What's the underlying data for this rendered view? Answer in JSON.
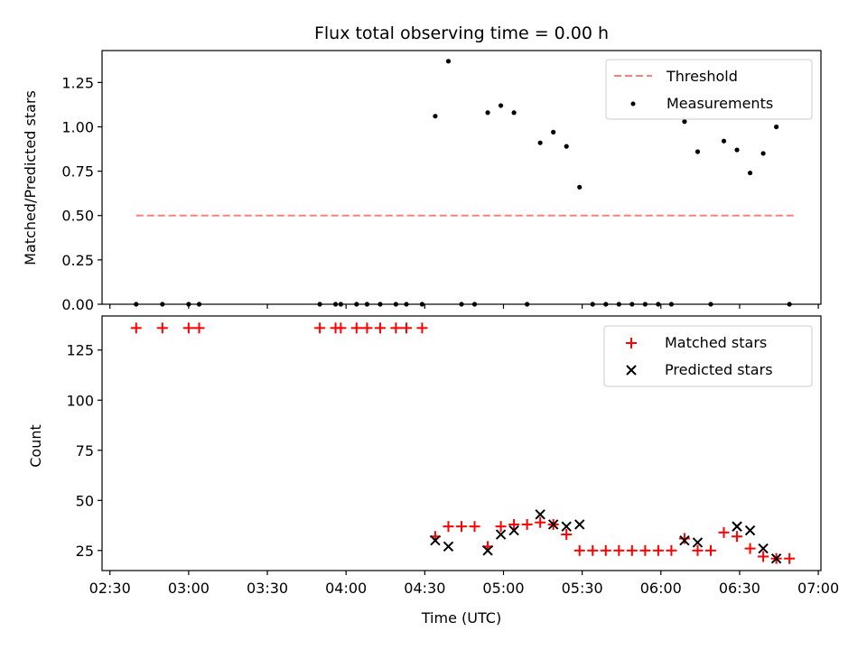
{
  "chart_data": [
    {
      "type": "scatter",
      "title": "Flux total observing time = 0.00 h",
      "xlabel": "",
      "ylabel": "Matched/Predicted stars",
      "xlim": [
        "02:27",
        "07:01"
      ],
      "ylim": [
        0,
        1.43
      ],
      "yticks": [
        "0.00",
        "0.25",
        "0.50",
        "0.75",
        "1.00",
        "1.25"
      ],
      "grid": false,
      "legend_position": "upper-right",
      "series": [
        {
          "name": "Threshold",
          "kind": "dashed-line",
          "color": "#ff7f7f",
          "x": [
            "02:40",
            "06:52"
          ],
          "y": [
            0.5,
            0.5
          ]
        },
        {
          "name": "Measurements",
          "kind": "points",
          "color": "#000000",
          "x": [
            "02:40",
            "02:50",
            "03:00",
            "03:04",
            "03:50",
            "03:56",
            "03:58",
            "04:04",
            "04:08",
            "04:13",
            "04:19",
            "04:23",
            "04:29",
            "04:34",
            "04:39",
            "04:44",
            "04:49",
            "04:54",
            "04:59",
            "05:04",
            "05:09",
            "05:14",
            "05:19",
            "05:24",
            "05:29",
            "05:34",
            "05:39",
            "05:44",
            "05:49",
            "05:54",
            "05:59",
            "06:04",
            "06:09",
            "06:14",
            "06:19",
            "06:24",
            "06:29",
            "06:34",
            "06:39",
            "06:44",
            "06:49"
          ],
          "y": [
            0,
            0,
            0,
            0,
            0,
            0,
            0,
            0,
            0,
            0,
            0,
            0,
            0,
            1.06,
            1.37,
            0,
            0,
            1.08,
            1.12,
            1.08,
            0,
            0.91,
            0.97,
            0.89,
            0.66,
            0,
            0,
            0,
            0,
            0,
            0,
            0,
            1.03,
            0.86,
            0,
            0.92,
            0.87,
            0.74,
            0.85,
            1.0,
            0
          ]
        }
      ]
    },
    {
      "type": "scatter",
      "title": "",
      "xlabel": "Time (UTC)",
      "ylabel": "Count",
      "xlim": [
        "02:27",
        "07:01"
      ],
      "ylim": [
        15,
        142
      ],
      "xticks": [
        "02:30",
        "03:00",
        "03:30",
        "04:00",
        "04:30",
        "05:00",
        "05:30",
        "06:00",
        "06:30",
        "07:00"
      ],
      "yticks": [
        "25",
        "50",
        "75",
        "100",
        "125"
      ],
      "grid": false,
      "legend_position": "upper-right",
      "series": [
        {
          "name": "Matched stars",
          "marker": "plus",
          "color": "#ff0000",
          "x": [
            "02:40",
            "02:50",
            "03:00",
            "03:04",
            "03:50",
            "03:56",
            "03:58",
            "04:04",
            "04:08",
            "04:13",
            "04:19",
            "04:23",
            "04:29",
            "04:34",
            "04:39",
            "04:44",
            "04:49",
            "04:54",
            "04:59",
            "05:04",
            "05:09",
            "05:14",
            "05:19",
            "05:24",
            "05:29",
            "05:34",
            "05:39",
            "05:44",
            "05:49",
            "05:54",
            "05:59",
            "06:04",
            "06:09",
            "06:14",
            "06:19",
            "06:24",
            "06:29",
            "06:34",
            "06:39",
            "06:44",
            "06:49"
          ],
          "y": [
            136,
            136,
            136,
            136,
            136,
            136,
            136,
            136,
            136,
            136,
            136,
            136,
            136,
            32,
            37,
            37,
            37,
            27,
            37,
            38,
            38,
            39,
            38,
            33,
            25,
            25,
            25,
            25,
            25,
            25,
            25,
            25,
            31,
            25,
            25,
            34,
            32,
            26,
            22,
            21,
            21
          ]
        },
        {
          "name": "Predicted stars",
          "marker": "x",
          "color": "#000000",
          "x": [
            "04:34",
            "04:39",
            "04:54",
            "04:59",
            "05:04",
            "05:14",
            "05:19",
            "05:24",
            "05:29",
            "06:09",
            "06:14",
            "06:29",
            "06:29",
            "06:34",
            "06:39",
            "06:44"
          ],
          "y": [
            30,
            27,
            25,
            33,
            35,
            43,
            38,
            37,
            38,
            30,
            29,
            37,
            37,
            35,
            26,
            21
          ]
        }
      ]
    }
  ]
}
